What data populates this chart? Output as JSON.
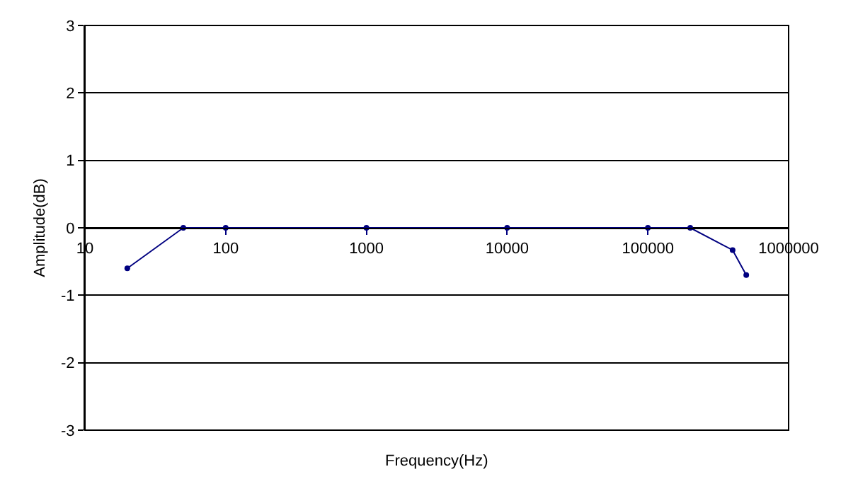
{
  "chart_data": {
    "type": "line",
    "xlabel": "Frequency(Hz)",
    "ylabel": "Amplitude(dB)",
    "log": "x",
    "x": [
      20,
      50,
      100,
      1000,
      10000,
      100000,
      200000,
      400000,
      500000
    ],
    "series": [
      {
        "color": "#000080",
        "values": [
          -0.6,
          0,
          0,
          0,
          0,
          0,
          0,
          -0.33,
          -0.7
        ]
      }
    ],
    "xlim": [
      10,
      1000000
    ],
    "xticks": [
      10,
      100,
      1000,
      10000,
      100000,
      1000000
    ],
    "ylim": [
      -3,
      3
    ],
    "yticks": [
      -3,
      -2,
      -1,
      0,
      1,
      2,
      3
    ],
    "grid": "y",
    "marker": "circle",
    "line_style": "solid",
    "legend": false
  }
}
